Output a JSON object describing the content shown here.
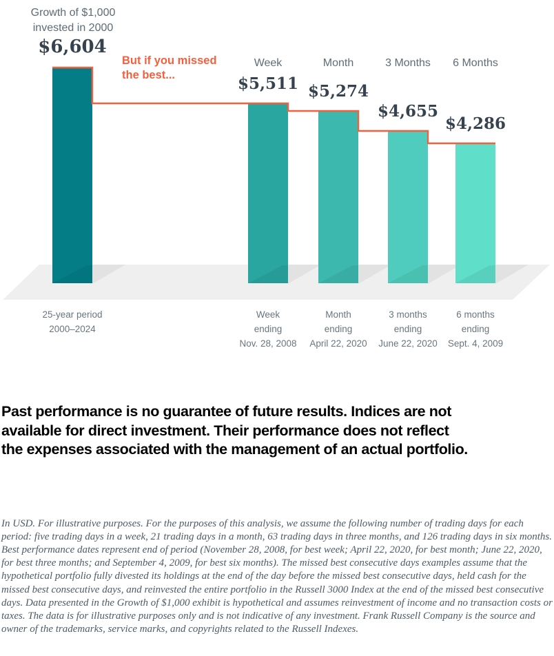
{
  "chart_data": {
    "type": "bar",
    "title": "Growth of $1,000 invested in 2000",
    "title_lines": [
      "Growth of $1,000",
      "invested in 2000"
    ],
    "annotation_lines": [
      "But if you missed",
      "the best..."
    ],
    "ylim": [
      0,
      6604
    ],
    "step_line_color": "#f4603d",
    "floor_color": "#efefef",
    "value_color": "#36434f",
    "bars": [
      {
        "header": "",
        "value": 6604,
        "value_label": "$6,604",
        "axis_lines": [
          "25-year period",
          "2000–2024"
        ],
        "color": "#047d87"
      },
      {
        "header": "Week",
        "value": 5511,
        "value_label": "$5,511",
        "axis_lines": [
          "Week",
          "ending",
          "Nov. 28, 2008"
        ],
        "color": "#2aa6a0"
      },
      {
        "header": "Month",
        "value": 5274,
        "value_label": "$5,274",
        "axis_lines": [
          "Month",
          "ending",
          "April 22, 2020"
        ],
        "color": "#3db8ae"
      },
      {
        "header": "3 Months",
        "value": 4655,
        "value_label": "$4,655",
        "axis_lines": [
          "3 months",
          "ending",
          "June 22, 2020"
        ],
        "color": "#4fccbd"
      },
      {
        "header": "6 Months",
        "value": 4286,
        "value_label": "$4,286",
        "axis_lines": [
          "6 months",
          "ending",
          "Sept. 4, 2009"
        ],
        "color": "#5fdec9"
      }
    ]
  },
  "disclaimer": {
    "lines": [
      "Past performance is no guarantee of future results. Indices are not",
      "available for direct investment. Their performance does not reflect",
      "the expenses associated with the management of an actual portfolio."
    ]
  },
  "fineprint": {
    "text": "In USD. For illustrative purposes. For the purposes of this analysis, we assume the following number of trading days for each period: five trading days in a week, 21 trading days in a month, 63 trading days in three months, and 126 trading days in six months. Best performance dates represent end of period (November 28, 2008, for best week; April 22, 2020, for best month; June 22, 2020, for best three months; and September 4, 2009, for best six months). The missed best consecutive days examples assume that the hypothetical portfolio fully divested its holdings at the end of the day before the missed best consecutive days, held cash for the missed best consecutive days, and reinvested the entire portfolio in the Russell 3000 Index at the end of the missed best consecutive days. Data presented in the Growth of $1,000 exhibit is hypothetical and assumes reinvestment of income and no transaction costs or taxes. The data is for illustrative purposes only and is not indicative of any investment. Frank Russell Company is the source and owner of the trademarks, service marks, and copyrights related to the Russell Indexes."
  }
}
